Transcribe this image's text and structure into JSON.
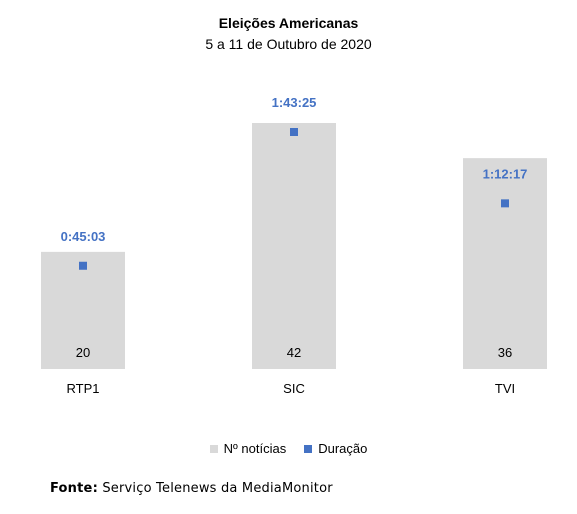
{
  "chart_data": {
    "type": "bar",
    "title": "Eleições Americanas",
    "subtitle": "5 a 11 de Outubro de 2020",
    "categories": [
      "RTP1",
      "SIC",
      "TVI"
    ],
    "series": [
      {
        "name": "Nº notícias",
        "kind": "bar",
        "values": [
          20,
          42,
          36
        ],
        "labels": [
          "20",
          "42",
          "36"
        ],
        "color": "#d9d9d9"
      },
      {
        "name": "Duração",
        "kind": "marker",
        "values_seconds": [
          2703,
          6205,
          4337
        ],
        "labels": [
          "0:45:03",
          "1:43:25",
          "1:12:17"
        ],
        "color": "#4472c4",
        "label_color": "#4472c4"
      }
    ],
    "grid": false,
    "legend_position": "bottom"
  },
  "source": {
    "label": "Fonte:",
    "text": "Serviço Telenews da MediaMonitor"
  }
}
